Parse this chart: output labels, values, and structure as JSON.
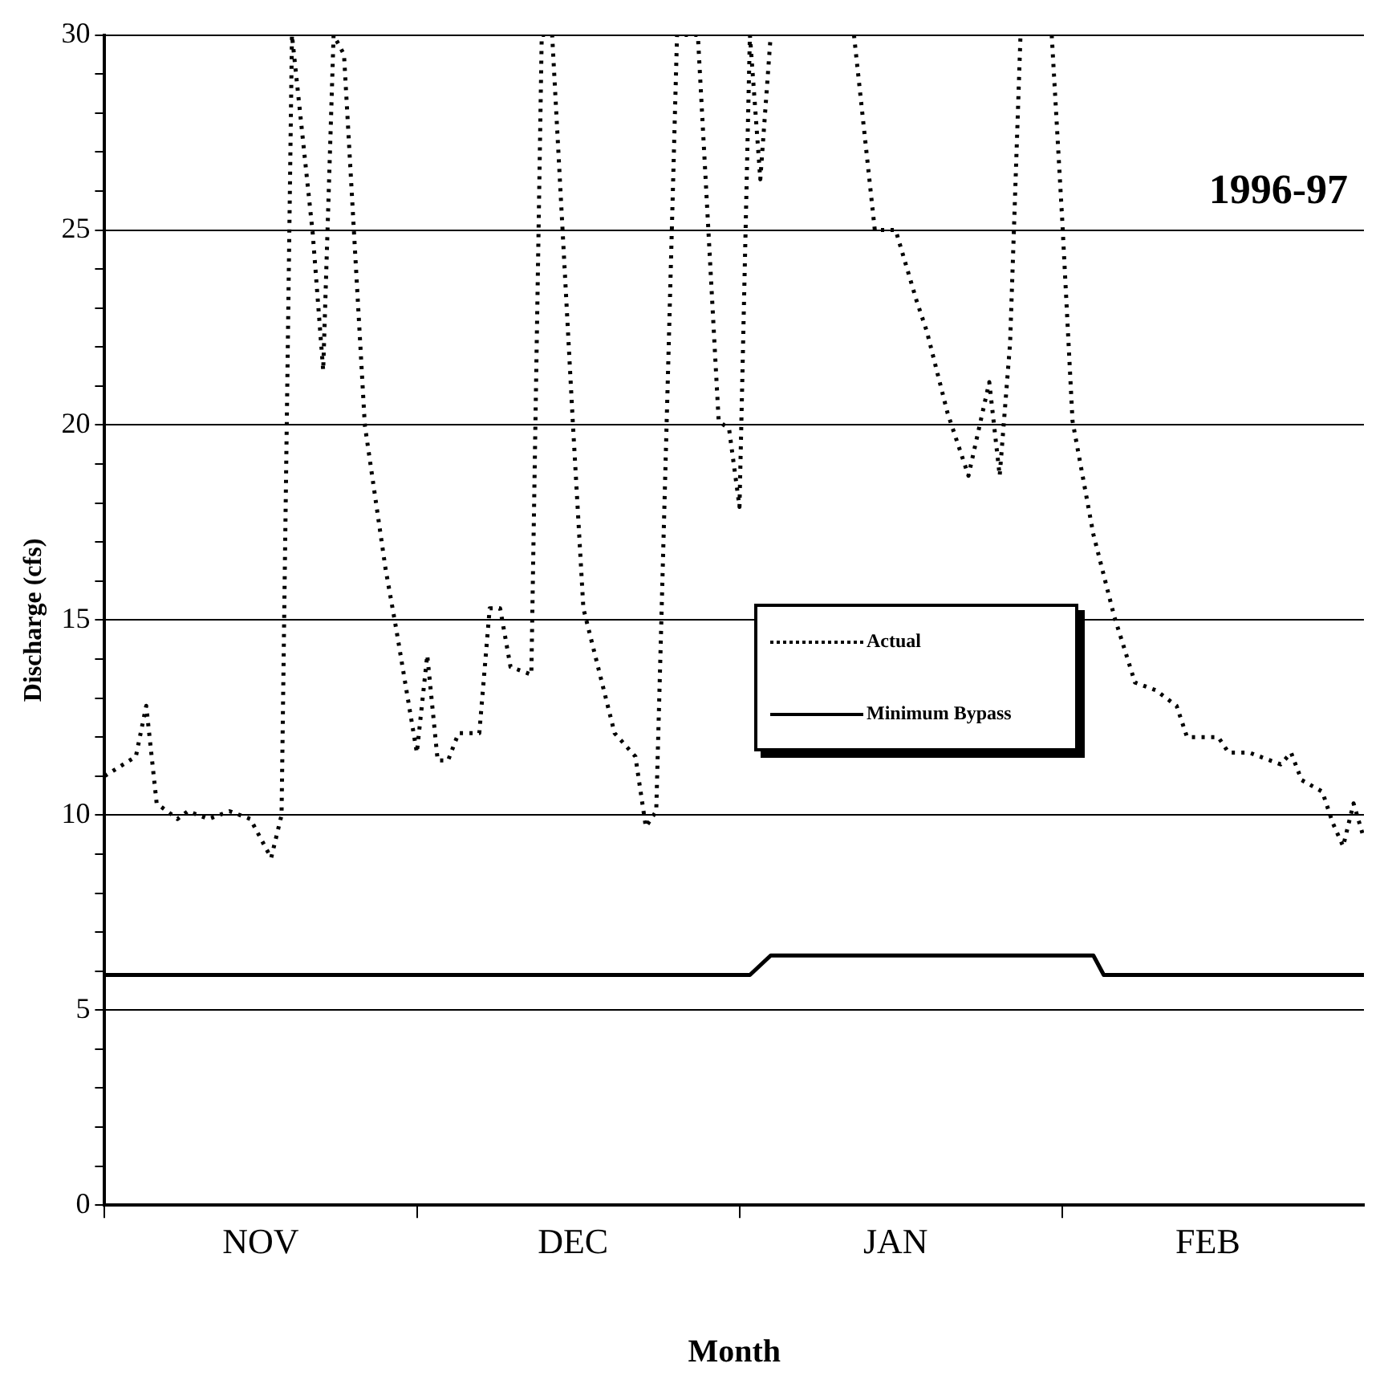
{
  "chart_data": {
    "type": "line",
    "xlabel": "Month",
    "ylabel": "Discharge (cfs)",
    "annotations": [
      "1996-97"
    ],
    "xlim": [
      "1996-11-01",
      "1997-03-02"
    ],
    "xticks": [
      {
        "value": "1996-11-01",
        "label": null
      },
      {
        "value": "1996-11-16",
        "label": "NOV"
      },
      {
        "value": "1996-12-01",
        "label": null
      },
      {
        "value": "1996-12-16",
        "label": "DEC"
      },
      {
        "value": "1997-01-01",
        "label": null
      },
      {
        "value": "1997-01-16",
        "label": "JAN"
      },
      {
        "value": "1997-02-01",
        "label": null
      },
      {
        "value": "1997-02-15",
        "label": "FEB"
      }
    ],
    "ylim": [
      0,
      30
    ],
    "yticks": [
      0,
      {
        "value": 1,
        "label": null
      },
      {
        "value": 2,
        "label": null
      },
      {
        "value": 3,
        "label": null
      },
      {
        "value": 4,
        "label": null
      },
      5,
      {
        "value": 6,
        "label": null
      },
      {
        "value": 7,
        "label": null
      },
      {
        "value": 8,
        "label": null
      },
      {
        "value": 9,
        "label": null
      },
      10,
      {
        "value": 11,
        "label": null
      },
      {
        "value": 12,
        "label": null
      },
      {
        "value": 13,
        "label": null
      },
      {
        "value": 14,
        "label": null
      },
      15,
      {
        "value": 16,
        "label": null
      },
      {
        "value": 17,
        "label": null
      },
      {
        "value": 18,
        "label": null
      },
      {
        "value": 19,
        "label": null
      },
      20,
      {
        "value": 21,
        "label": null
      },
      {
        "value": 22,
        "label": null
      },
      {
        "value": 23,
        "label": null
      },
      {
        "value": 24,
        "label": null
      },
      25,
      {
        "value": 26,
        "label": null
      },
      {
        "value": 27,
        "label": null
      },
      {
        "value": 28,
        "label": null
      },
      {
        "value": 29,
        "label": null
      },
      30
    ],
    "grid": "y",
    "legend": "right",
    "marker": "none",
    "series": [
      {
        "name": "Actual",
        "color": "#000000",
        "line_style": "dotted",
        "x": [
          "1996-11-01",
          "1996-11-04",
          "1996-11-05",
          "1996-11-06",
          "1996-11-08",
          "1996-11-09",
          "1996-11-11",
          "1996-11-13",
          "1996-11-15",
          "1996-11-17",
          "1996-11-18",
          "1996-11-19",
          "1996-11-21",
          "1996-11-22",
          "1996-11-23",
          "1996-11-24",
          "1996-11-26",
          "1996-11-28",
          "1996-11-29",
          "1996-12-01",
          "1996-12-02",
          "1996-12-03",
          "1996-12-04",
          "1996-12-05",
          "1996-12-07",
          "1996-12-08",
          "1996-12-09",
          "1996-12-10",
          "1996-12-12",
          "1996-12-13",
          "1996-12-14",
          "1996-12-16",
          "1996-12-17",
          "1996-12-20",
          "1996-12-22",
          "1996-12-23",
          "1996-12-24",
          "1996-12-26",
          "1996-12-28",
          "1996-12-30",
          "1996-12-31",
          "1997-01-01",
          "1997-01-02",
          "1997-01-03",
          "1997-01-04",
          "1997-01-08",
          "1997-01-12",
          "1997-01-14",
          "1997-01-16",
          "1997-01-18",
          "1997-01-19",
          "1997-01-21",
          "1997-01-23",
          "1997-01-25",
          "1997-01-26",
          "1997-01-27",
          "1997-01-28",
          "1997-01-29",
          "1997-01-31",
          "1997-02-01",
          "1997-02-02",
          "1997-02-04",
          "1997-02-06",
          "1997-02-08",
          "1997-02-10",
          "1997-02-12",
          "1997-02-13",
          "1997-02-16",
          "1997-02-17",
          "1997-02-19",
          "1997-02-22",
          "1997-02-23",
          "1997-02-24",
          "1997-02-26",
          "1997-02-27",
          "1997-02-28",
          "1997-03-01",
          "1997-03-02"
        ],
        "values": [
          11,
          11.5,
          12.8,
          10.3,
          9.9,
          10.1,
          9.9,
          10.1,
          9.9,
          8.9,
          10,
          30,
          24.9,
          21.4,
          30,
          29.5,
          20,
          16.3,
          14.8,
          11.6,
          14.1,
          11.4,
          11.4,
          12.1,
          12.1,
          15.3,
          15.3,
          13.8,
          13.6,
          30,
          30,
          20,
          15.3,
          12.1,
          11.5,
          9.7,
          10.1,
          30,
          30,
          20.1,
          19.9,
          17.9,
          30,
          26.3,
          30,
          null,
          30,
          25,
          25,
          23.2,
          22.4,
          20.3,
          18.7,
          21.1,
          18.7,
          22.1,
          30,
          null,
          30,
          25.3,
          20.1,
          17.2,
          15.1,
          13.4,
          13.2,
          12.8,
          12,
          12,
          11.6,
          11.6,
          11.3,
          11.6,
          10.9,
          10.6,
          9.8,
          9.2,
          10.3,
          9.4
        ]
      },
      {
        "name": "Minimum Bypass",
        "color": "#000000",
        "line_style": "solid",
        "x": [
          "1996-11-01",
          "1997-01-02",
          "1997-01-04",
          "1997-02-04",
          "1997-02-05",
          "1997-03-02"
        ],
        "values": [
          5.9,
          5.9,
          6.4,
          6.4,
          5.9,
          5.9
        ]
      }
    ]
  }
}
